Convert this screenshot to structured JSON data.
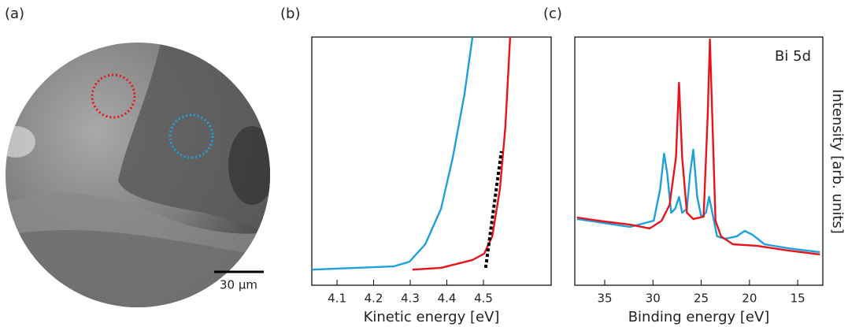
{
  "image": {
    "panel_label": "(a)",
    "scale_bar": "30 μm"
  },
  "chart_data": [
    {
      "type": "line",
      "panel_label": "(b)",
      "xlabel": "Kinetic energy  [eV]",
      "xlim": [
        4.031,
        4.685
      ],
      "xticks": [
        4.1,
        4.2,
        4.3,
        4.4,
        4.5
      ],
      "ylim": [
        0,
        1
      ],
      "series": [
        {
          "color": "#1ea0dc",
          "style": "solid",
          "x": [
            4.031,
            4.255,
            4.298,
            4.341,
            4.384,
            4.416,
            4.448,
            4.47
          ],
          "values": [
            0.063,
            0.076,
            0.095,
            0.165,
            0.308,
            0.514,
            0.768,
            1.0
          ]
        },
        {
          "color": "#e8141c",
          "style": "solid",
          "x": [
            4.306,
            4.384,
            4.47,
            4.502,
            4.524,
            4.545,
            4.56,
            4.573
          ],
          "values": [
            0.063,
            0.07,
            0.102,
            0.127,
            0.197,
            0.387,
            0.641,
            1.0
          ]
        },
        {
          "color": "#000000",
          "style": "dashed",
          "x": [
            4.506,
            4.549
          ],
          "values": [
            0.07,
            0.54
          ]
        }
      ]
    },
    {
      "type": "line",
      "panel_label": "(c)",
      "xlabel": "Binding energy [eV]",
      "ylabel": "Intensity [arb. units]",
      "annotation": "Bi 5d",
      "xlim": [
        38.1,
        12.4
      ],
      "xticks": [
        35,
        30,
        25,
        20,
        15
      ],
      "ylim": [
        0,
        1
      ],
      "series": [
        {
          "color": "#1ea0dc",
          "style": "solid",
          "x": [
            37.87,
            32.38,
            29.92,
            29.26,
            28.85,
            28.52,
            28.11,
            27.7,
            27.3,
            26.97,
            26.48,
            26.15,
            25.82,
            25.41,
            25.0,
            24.51,
            24.18,
            23.85,
            23.36,
            22.54,
            21.31,
            20.49,
            19.67,
            18.44,
            15.98,
            12.7
          ],
          "values": [
            0.267,
            0.235,
            0.26,
            0.387,
            0.53,
            0.451,
            0.292,
            0.308,
            0.356,
            0.292,
            0.308,
            0.451,
            0.546,
            0.356,
            0.276,
            0.292,
            0.356,
            0.292,
            0.197,
            0.187,
            0.197,
            0.219,
            0.203,
            0.165,
            0.149,
            0.133
          ]
        },
        {
          "color": "#e8141c",
          "style": "solid",
          "x": [
            37.87,
            35.66,
            32.38,
            30.33,
            29.1,
            28.28,
            27.62,
            27.3,
            26.97,
            26.48,
            25.82,
            24.75,
            24.34,
            24.1,
            23.85,
            23.52,
            22.95,
            21.72,
            19.26,
            15.98,
            12.7
          ],
          "values": [
            0.273,
            0.26,
            0.244,
            0.229,
            0.26,
            0.324,
            0.514,
            0.816,
            0.514,
            0.292,
            0.267,
            0.276,
            0.673,
            0.99,
            0.673,
            0.26,
            0.197,
            0.165,
            0.159,
            0.14,
            0.124
          ]
        }
      ]
    }
  ]
}
